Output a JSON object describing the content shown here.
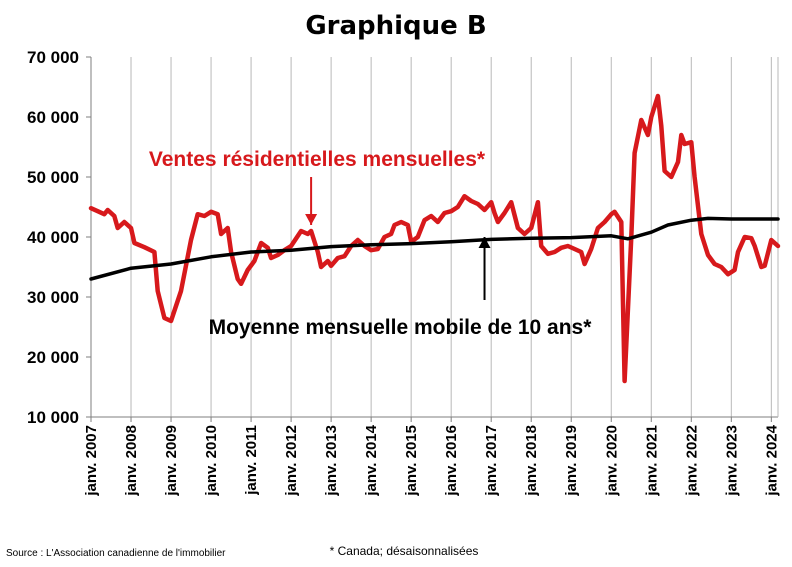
{
  "chart_data": {
    "type": "line",
    "title": "Graphique B",
    "xlabel": "",
    "ylabel": "",
    "ylim": [
      10000,
      70000
    ],
    "xlim": [
      "2007-01",
      "2024-03"
    ],
    "grid": {
      "vertical": true,
      "horizontal": false
    },
    "y_tick_values": [
      10000,
      20000,
      30000,
      40000,
      50000,
      60000,
      70000
    ],
    "y_tick_labels": [
      "10 000",
      "20 000",
      "30 000",
      "40 000",
      "50 000",
      "60 000",
      "70 000"
    ],
    "x_tick_labels": [
      "janv. 2007",
      "janv. 2008",
      "janv. 2009",
      "janv. 2010",
      "janv. 2011",
      "janv. 2012",
      "janv. 2013",
      "janv. 2014",
      "janv. 2015",
      "janv. 2016",
      "janv. 2017",
      "janv. 2018",
      "janv. 2019",
      "janv. 2020",
      "janv. 2021",
      "janv. 2022",
      "janv. 2023",
      "janv. 2024"
    ],
    "series": [
      {
        "name": "Ventes résidentielles mensuelles*",
        "color": "#d7191c",
        "points": [
          [
            "2007-01",
            44800
          ],
          [
            "2007-03",
            44300
          ],
          [
            "2007-05",
            43800
          ],
          [
            "2007-06",
            44500
          ],
          [
            "2007-08",
            43500
          ],
          [
            "2007-09",
            41500
          ],
          [
            "2007-11",
            42500
          ],
          [
            "2008-01",
            41500
          ],
          [
            "2008-02",
            39000
          ],
          [
            "2008-05",
            38300
          ],
          [
            "2008-08",
            37500
          ],
          [
            "2008-09",
            31000
          ],
          [
            "2008-11",
            26500
          ],
          [
            "2009-01",
            26000
          ],
          [
            "2009-04",
            31000
          ],
          [
            "2009-07",
            39500
          ],
          [
            "2009-09",
            43800
          ],
          [
            "2009-11",
            43500
          ],
          [
            "2010-01",
            44200
          ],
          [
            "2010-03",
            43800
          ],
          [
            "2010-04",
            40500
          ],
          [
            "2010-06",
            41500
          ],
          [
            "2010-07",
            37500
          ],
          [
            "2010-09",
            33000
          ],
          [
            "2010-10",
            32200
          ],
          [
            "2010-12",
            34500
          ],
          [
            "2011-02",
            36000
          ],
          [
            "2011-04",
            39000
          ],
          [
            "2011-06",
            38200
          ],
          [
            "2011-07",
            36500
          ],
          [
            "2011-09",
            37000
          ],
          [
            "2011-11",
            37800
          ],
          [
            "2012-01",
            38500
          ],
          [
            "2012-04",
            41000
          ],
          [
            "2012-06",
            40500
          ],
          [
            "2012-07",
            41000
          ],
          [
            "2012-09",
            37500
          ],
          [
            "2012-10",
            35000
          ],
          [
            "2012-12",
            36000
          ],
          [
            "2013-01",
            35200
          ],
          [
            "2013-03",
            36500
          ],
          [
            "2013-05",
            36800
          ],
          [
            "2013-07",
            38500
          ],
          [
            "2013-09",
            39500
          ],
          [
            "2013-11",
            38500
          ],
          [
            "2014-01",
            37800
          ],
          [
            "2014-03",
            38000
          ],
          [
            "2014-05",
            40000
          ],
          [
            "2014-07",
            40500
          ],
          [
            "2014-08",
            42000
          ],
          [
            "2014-10",
            42500
          ],
          [
            "2014-12",
            42000
          ],
          [
            "2015-01",
            39200
          ],
          [
            "2015-03",
            40000
          ],
          [
            "2015-05",
            42800
          ],
          [
            "2015-07",
            43500
          ],
          [
            "2015-09",
            42500
          ],
          [
            "2015-11",
            44000
          ],
          [
            "2016-01",
            44300
          ],
          [
            "2016-03",
            45000
          ],
          [
            "2016-05",
            46800
          ],
          [
            "2016-07",
            46000
          ],
          [
            "2016-09",
            45500
          ],
          [
            "2016-11",
            44500
          ],
          [
            "2017-01",
            45800
          ],
          [
            "2017-02",
            44000
          ],
          [
            "2017-03",
            42500
          ],
          [
            "2017-05",
            44000
          ],
          [
            "2017-07",
            45800
          ],
          [
            "2017-09",
            41500
          ],
          [
            "2017-11",
            40500
          ],
          [
            "2018-01",
            41500
          ],
          [
            "2018-03",
            45800
          ],
          [
            "2018-04",
            38500
          ],
          [
            "2018-06",
            37200
          ],
          [
            "2018-08",
            37500
          ],
          [
            "2018-10",
            38200
          ],
          [
            "2018-12",
            38500
          ],
          [
            "2019-02",
            38000
          ],
          [
            "2019-04",
            37500
          ],
          [
            "2019-05",
            35500
          ],
          [
            "2019-07",
            38000
          ],
          [
            "2019-09",
            41500
          ],
          [
            "2019-11",
            42500
          ],
          [
            "2020-01",
            43800
          ],
          [
            "2020-02",
            44200
          ],
          [
            "2020-04",
            42500
          ],
          [
            "2020-05",
            16000
          ],
          [
            "2020-07",
            40000
          ],
          [
            "2020-08",
            54000
          ],
          [
            "2020-10",
            59500
          ],
          [
            "2020-12",
            57000
          ],
          [
            "2021-01",
            60000
          ],
          [
            "2021-03",
            63500
          ],
          [
            "2021-04",
            58500
          ],
          [
            "2021-05",
            51000
          ],
          [
            "2021-07",
            50000
          ],
          [
            "2021-09",
            52500
          ],
          [
            "2021-10",
            57000
          ],
          [
            "2021-11",
            55500
          ],
          [
            "2022-01",
            55800
          ],
          [
            "2022-02",
            50000
          ],
          [
            "2022-04",
            40500
          ],
          [
            "2022-06",
            37000
          ],
          [
            "2022-08",
            35500
          ],
          [
            "2022-10",
            35000
          ],
          [
            "2022-12",
            33800
          ],
          [
            "2023-02",
            34500
          ],
          [
            "2023-03",
            37500
          ],
          [
            "2023-05",
            40000
          ],
          [
            "2023-07",
            39800
          ],
          [
            "2023-08",
            38500
          ],
          [
            "2023-10",
            35000
          ],
          [
            "2023-11",
            35200
          ],
          [
            "2024-01",
            39500
          ],
          [
            "2024-03",
            38500
          ]
        ]
      },
      {
        "name": "Moyenne mensuelle mobile de 10 ans*",
        "color": "#000000",
        "points": [
          [
            "2007-01",
            33000
          ],
          [
            "2008-01",
            34800
          ],
          [
            "2009-01",
            35500
          ],
          [
            "2010-01",
            36700
          ],
          [
            "2011-01",
            37500
          ],
          [
            "2012-01",
            37800
          ],
          [
            "2013-01",
            38400
          ],
          [
            "2014-01",
            38700
          ],
          [
            "2015-01",
            38900
          ],
          [
            "2016-01",
            39200
          ],
          [
            "2017-01",
            39600
          ],
          [
            "2018-01",
            39800
          ],
          [
            "2019-01",
            39900
          ],
          [
            "2020-01",
            40200
          ],
          [
            "2020-06",
            39700
          ],
          [
            "2021-01",
            40800
          ],
          [
            "2021-06",
            42000
          ],
          [
            "2022-01",
            42800
          ],
          [
            "2022-06",
            43100
          ],
          [
            "2023-01",
            43000
          ],
          [
            "2024-03",
            43000
          ]
        ]
      }
    ],
    "annotations": [
      {
        "text": "Ventes résidentielles mensuelles*",
        "series": 0,
        "arrow_from": [
          "2012-07",
          50000
        ],
        "arrow_to": [
          "2012-07",
          42000
        ]
      },
      {
        "text": "Moyenne mensuelle mobile de 10 ans*",
        "series": 1,
        "arrow_from": [
          "2016-11",
          29500
        ],
        "arrow_to": [
          "2016-11",
          40000
        ]
      }
    ]
  },
  "source": "Source : L'Association canadienne de l'immobilier",
  "footnote": "* Canada; désaisonnalisées"
}
